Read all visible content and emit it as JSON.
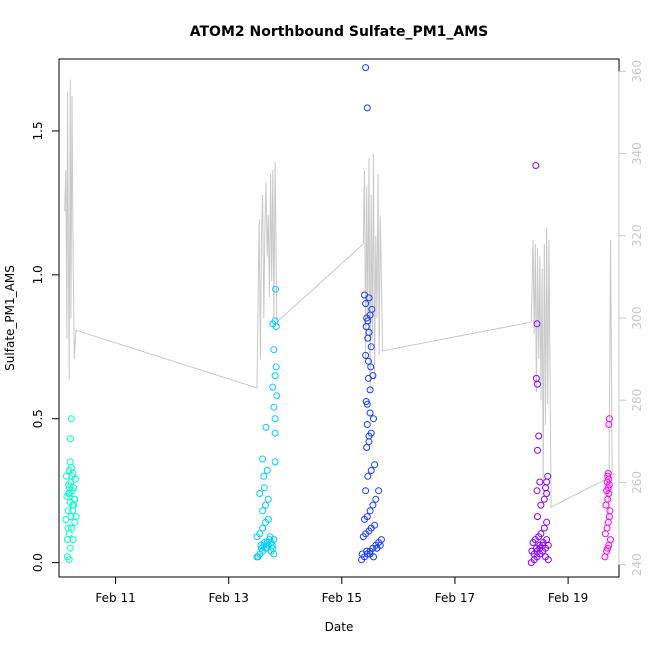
{
  "chart_data": {
    "type": "scatter",
    "title": "ATOM2 Northbound Sulfate_PM1_AMS",
    "xlabel": "Date",
    "ylabel": "Sulfate_PM1_AMS",
    "x_unit": "days in February",
    "xlim": [
      10.0,
      19.9
    ],
    "ylim": [
      -0.05,
      1.75
    ],
    "x_ticks": [
      {
        "value": 11,
        "label": "Feb 11"
      },
      {
        "value": 13,
        "label": "Feb 13"
      },
      {
        "value": 15,
        "label": "Feb 15"
      },
      {
        "value": 17,
        "label": "Feb 17"
      },
      {
        "value": 19,
        "label": "Feb 19"
      }
    ],
    "y_ticks": [
      {
        "value": 0.0,
        "label": "0.0"
      },
      {
        "value": 0.5,
        "label": "0.5"
      },
      {
        "value": 1.0,
        "label": "1.0"
      },
      {
        "value": 1.5,
        "label": "1.5"
      }
    ],
    "y2": {
      "ylim": [
        237,
        363
      ],
      "ticks": [
        {
          "value": 240,
          "label": "240"
        },
        {
          "value": 260,
          "label": "260"
        },
        {
          "value": 280,
          "label": "280"
        },
        {
          "value": 300,
          "label": "300"
        },
        {
          "value": 320,
          "label": "320"
        },
        {
          "value": 340,
          "label": "340"
        },
        {
          "value": 360,
          "label": "360"
        }
      ],
      "color": "#c8c8c8"
    },
    "grid": false,
    "legend": "none",
    "series": [
      {
        "color": "#00ffcc",
        "x": [
          10.15,
          10.2,
          10.25,
          10.18,
          10.22,
          10.28,
          10.12,
          10.3,
          10.16,
          10.24,
          10.2,
          10.27,
          10.14,
          10.19,
          10.23,
          10.26,
          10.17,
          10.21,
          10.29,
          10.13,
          10.25,
          10.18,
          10.22,
          10.2,
          10.16,
          10.24,
          10.28,
          10.19,
          10.23,
          10.15,
          10.26,
          10.21,
          10.17,
          10.2,
          10.22,
          10.18
        ],
        "y": [
          0.02,
          0.05,
          0.08,
          0.1,
          0.12,
          0.14,
          0.15,
          0.16,
          0.18,
          0.2,
          0.21,
          0.22,
          0.23,
          0.24,
          0.25,
          0.26,
          0.27,
          0.28,
          0.29,
          0.3,
          0.31,
          0.32,
          0.33,
          0.35,
          0.12,
          0.18,
          0.22,
          0.26,
          0.3,
          0.08,
          0.2,
          0.16,
          0.24,
          0.43,
          0.5,
          0.01
        ]
      },
      {
        "color": "#00ccff",
        "x": [
          13.5,
          13.55,
          13.6,
          13.65,
          13.7,
          13.75,
          13.8,
          13.5,
          13.58,
          13.62,
          13.68,
          13.72,
          13.78,
          13.55,
          13.6,
          13.65,
          13.7,
          13.75,
          13.8,
          13.52,
          13.57,
          13.63,
          13.67,
          13.73,
          13.77,
          13.6,
          13.65,
          13.7,
          13.55,
          13.62,
          13.68,
          13.82,
          13.82,
          13.82,
          13.8,
          13.85,
          13.78,
          13.82,
          13.84,
          13.8,
          13.84,
          13.78,
          13.82,
          13.83,
          13.66,
          13.6,
          13.63
        ],
        "y": [
          0.02,
          0.03,
          0.04,
          0.05,
          0.06,
          0.07,
          0.08,
          0.09,
          0.05,
          0.06,
          0.07,
          0.08,
          0.05,
          0.1,
          0.12,
          0.14,
          0.15,
          0.04,
          0.03,
          0.02,
          0.06,
          0.07,
          0.05,
          0.09,
          0.06,
          0.18,
          0.2,
          0.22,
          0.24,
          0.3,
          0.32,
          0.35,
          0.45,
          0.5,
          0.54,
          0.58,
          0.61,
          0.65,
          0.68,
          0.74,
          0.82,
          0.83,
          0.84,
          0.95,
          0.47,
          0.36,
          0.26
        ]
      },
      {
        "color": "#1a3cff",
        "x": [
          15.35,
          15.4,
          15.45,
          15.5,
          15.55,
          15.6,
          15.65,
          15.7,
          15.38,
          15.42,
          15.48,
          15.52,
          15.58,
          15.62,
          15.68,
          15.4,
          15.45,
          15.5,
          15.55,
          15.6,
          15.65,
          15.36,
          15.44,
          15.5,
          15.56,
          15.62,
          15.46,
          15.52,
          15.58,
          15.44,
          15.48,
          15.52,
          15.56,
          15.45,
          15.5,
          15.55,
          15.47,
          15.52,
          15.48,
          15.43,
          15.46,
          15.5,
          15.53,
          15.42,
          15.48,
          15.4,
          15.5,
          15.45,
          15.48,
          15.43,
          15.47,
          15.51,
          15.42,
          15.46,
          15.44,
          15.42,
          15.45,
          15.42
        ],
        "y": [
          0.01,
          0.02,
          0.03,
          0.04,
          0.05,
          0.06,
          0.07,
          0.08,
          0.09,
          0.1,
          0.11,
          0.12,
          0.13,
          0.05,
          0.06,
          0.15,
          0.16,
          0.18,
          0.2,
          0.22,
          0.25,
          0.03,
          0.04,
          0.03,
          0.02,
          0.05,
          0.3,
          0.32,
          0.34,
          0.4,
          0.42,
          0.45,
          0.5,
          0.55,
          0.6,
          0.65,
          0.7,
          0.75,
          0.8,
          0.82,
          0.84,
          0.86,
          0.88,
          0.9,
          0.92,
          0.93,
          0.52,
          0.48,
          0.44,
          0.56,
          0.64,
          0.68,
          0.72,
          0.78,
          0.85,
          0.25,
          1.58,
          1.72
        ]
      },
      {
        "color": "#8800ff",
        "x": [
          18.35,
          18.4,
          18.45,
          18.5,
          18.55,
          18.6,
          18.65,
          18.38,
          18.42,
          18.48,
          18.52,
          18.58,
          18.62,
          18.4,
          18.45,
          18.5,
          18.55,
          18.6,
          18.65,
          18.36,
          18.44,
          18.5,
          18.56,
          18.62,
          18.46,
          18.52,
          18.58,
          18.45,
          18.5,
          18.46,
          18.48,
          18.44,
          18.46,
          18.62,
          18.6,
          18.62,
          18.64,
          18.45,
          18.43
        ],
        "y": [
          0.0,
          0.01,
          0.02,
          0.03,
          0.04,
          0.05,
          0.06,
          0.07,
          0.08,
          0.09,
          0.1,
          0.12,
          0.14,
          0.03,
          0.04,
          0.05,
          0.06,
          0.02,
          0.01,
          0.04,
          0.05,
          0.06,
          0.07,
          0.08,
          0.16,
          0.2,
          0.22,
          0.25,
          0.28,
          0.39,
          0.44,
          0.64,
          0.62,
          0.24,
          0.26,
          0.28,
          0.3,
          0.83,
          1.38
        ]
      },
      {
        "color": "#ff00ff",
        "x": [
          19.65,
          19.68,
          19.7,
          19.72,
          19.75,
          19.66,
          19.69,
          19.71,
          19.73,
          19.74,
          19.67,
          19.7,
          19.72,
          19.68,
          19.71,
          19.73,
          19.69,
          19.72,
          19.7,
          19.71,
          19.72,
          19.73
        ],
        "y": [
          0.02,
          0.04,
          0.05,
          0.06,
          0.08,
          0.1,
          0.12,
          0.14,
          0.16,
          0.18,
          0.2,
          0.22,
          0.24,
          0.25,
          0.26,
          0.27,
          0.28,
          0.29,
          0.3,
          0.31,
          0.48,
          0.5
        ]
      }
    ],
    "secondary_line": {
      "color": "#c8c8c8",
      "x": [
        10.1,
        10.12,
        10.14,
        10.15,
        10.17,
        10.18,
        10.2,
        10.21,
        10.23,
        10.25,
        10.27,
        10.3,
        13.5,
        13.52,
        13.54,
        13.56,
        13.58,
        13.6,
        13.62,
        13.64,
        13.66,
        13.68,
        13.7,
        13.72,
        13.74,
        13.76,
        13.78,
        13.8,
        13.82,
        13.85,
        15.38,
        15.4,
        15.42,
        15.44,
        15.46,
        15.48,
        15.5,
        15.52,
        15.54,
        15.56,
        15.58,
        15.6,
        15.62,
        15.64,
        15.66,
        15.68,
        15.72,
        18.35,
        18.38,
        18.4,
        18.42,
        18.44,
        18.46,
        18.48,
        18.5,
        18.52,
        18.54,
        18.56,
        18.58,
        18.6,
        18.62,
        18.64,
        18.66,
        18.7,
        19.7,
        19.72,
        19.75,
        19.78,
        19.82
      ],
      "y": [
        326,
        336,
        295,
        355,
        310,
        285,
        358,
        300,
        354,
        315,
        290,
        297,
        283,
        305,
        324,
        290,
        320,
        330,
        300,
        322,
        333,
        315,
        325,
        305,
        335,
        309,
        336,
        300,
        338,
        299,
        318,
        336,
        290,
        332,
        300,
        339,
        282,
        330,
        295,
        340,
        285,
        320,
        300,
        335,
        291,
        325,
        292,
        299,
        319,
        296,
        318,
        282,
        317,
        290,
        315,
        280,
        312,
        260,
        318,
        274,
        322,
        279,
        319,
        254,
        261,
        250,
        319,
        262,
        262
      ]
    }
  }
}
